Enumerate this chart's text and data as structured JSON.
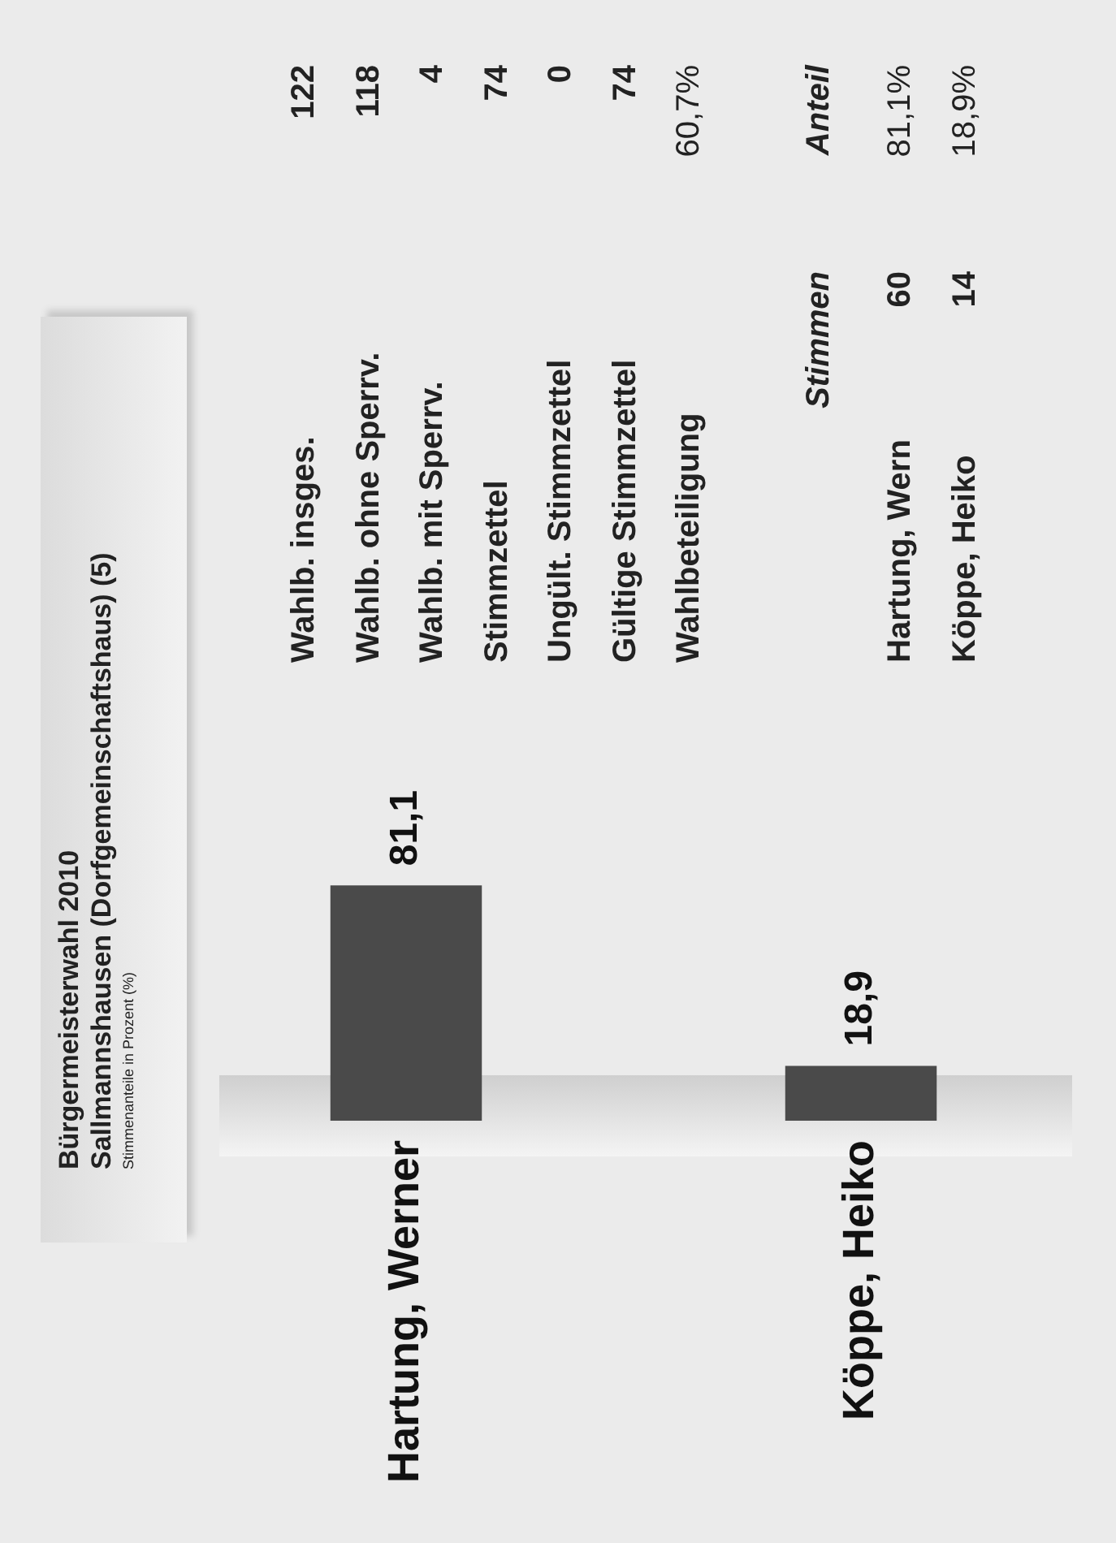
{
  "chart_data": {
    "type": "bar",
    "title": "Bürgermeisterwahl 2010",
    "subtitle": "Sallmannshausen (Dorfgemeinschaftshaus) (5)",
    "categories": [
      "Hartung, Werner",
      "Köppe, Heiko"
    ],
    "values": [
      81.1,
      18.9
    ],
    "value_labels": [
      "81,1",
      "18,9"
    ],
    "color": "#4a4a4a",
    "legend": false,
    "annotations": [
      "Wahlb. insges.",
      "122",
      "Wahlb. ohne Sperrv.",
      "118",
      "Wahlb. mit Sperrv.",
      "4",
      "Stimmzettel",
      "74",
      "Ungült. Stimmzettel",
      "0",
      "Gültige Stimmzettel",
      "74",
      "Wahlbeteiligung",
      "60,7%",
      "Stimmen",
      "Anteil",
      "Hartung, Wern",
      "60",
      "81,1%",
      "Köppe, Heiko",
      "14",
      "18,9%",
      "Stimmenanteile in Prozent (%)"
    ]
  }
}
